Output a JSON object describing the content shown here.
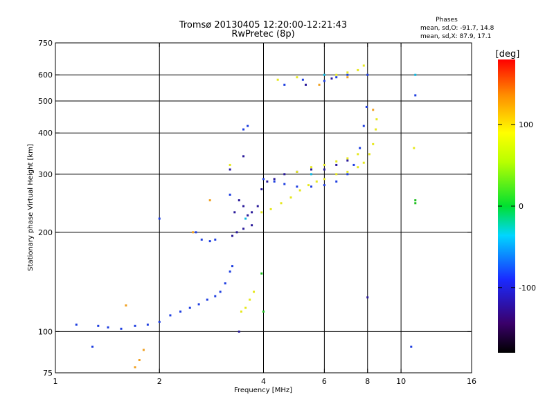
{
  "title": {
    "line1": "Tromsø 20130405 12:20:00-12:21:43",
    "line2": "RwPretec (8p)"
  },
  "phases": {
    "header": "Phases",
    "o_mode": "mean, sd,O: -91.7, 14.8",
    "x_mode": "mean, sd,X: 87.9, 17.1"
  },
  "colors": {
    "o_mode_main": "#1f3fe0",
    "o_mode_dark": "#2a1a9a",
    "x_mode": "#e6e81e",
    "x_mode_orange": "#f0a020",
    "grid": "#000000"
  },
  "colorbar": {
    "unit": "[deg]",
    "min": -180,
    "max": 180,
    "ticks": [
      "100",
      "0",
      "-100"
    ],
    "tick_values": [
      100,
      0,
      -100
    ]
  },
  "chart_data": {
    "type": "scatter",
    "title": "Tromsø 20130405 12:20:00-12:21:43",
    "subtitle": "RwPretec (8p)",
    "xlabel": "Frequency [MHz]",
    "ylabel": "Stationary phase Virtual Height [km]",
    "x_scale": "log2",
    "y_scale": "log",
    "xlim": [
      1,
      16
    ],
    "ylim": [
      75,
      750
    ],
    "x_ticks": [
      {
        "v": 1,
        "label": "1"
      },
      {
        "v": 2,
        "label": "2"
      },
      {
        "v": 4,
        "label": "4"
      },
      {
        "v": 6,
        "label": "6"
      },
      {
        "v": 8,
        "label": "8"
      },
      {
        "v": 10,
        "label": "10"
      },
      {
        "v": 16,
        "label": "16"
      }
    ],
    "x_grid": [
      2,
      4,
      6,
      8,
      10
    ],
    "y_ticks": [
      {
        "v": 75,
        "label": "75"
      },
      {
        "v": 100,
        "label": "100"
      },
      {
        "v": 200,
        "label": "200"
      },
      {
        "v": 300,
        "label": "300"
      },
      {
        "v": 400,
        "label": "400"
      },
      {
        "v": 500,
        "label": "500"
      },
      {
        "v": 600,
        "label": "600"
      },
      {
        "v": 750,
        "label": "750"
      }
    ],
    "y_grid": [
      100,
      200,
      300,
      400,
      500,
      600
    ],
    "grid": true,
    "series": [
      {
        "mode": "o",
        "phase": -100,
        "points": [
          [
            1.33,
            104
          ],
          [
            1.42,
            103
          ],
          [
            1.55,
            102
          ],
          [
            1.7,
            104
          ],
          [
            1.85,
            105
          ],
          [
            2.0,
            107
          ],
          [
            2.15,
            112
          ],
          [
            2.3,
            115
          ],
          [
            2.45,
            118
          ],
          [
            2.6,
            121
          ],
          [
            2.75,
            125
          ],
          [
            2.9,
            128
          ],
          [
            3.0,
            132
          ],
          [
            3.1,
            140
          ],
          [
            3.2,
            152
          ],
          [
            3.25,
            158
          ],
          [
            2.55,
            200
          ],
          [
            2.65,
            190
          ],
          [
            2.8,
            188
          ],
          [
            2.9,
            190
          ],
          [
            4.0,
            290
          ],
          [
            4.3,
            285
          ],
          [
            4.6,
            280
          ],
          [
            5.0,
            275
          ],
          [
            5.5,
            275
          ],
          [
            6.0,
            278
          ],
          [
            6.5,
            285
          ],
          [
            7.0,
            300
          ],
          [
            7.3,
            320
          ],
          [
            7.6,
            360
          ],
          [
            7.8,
            420
          ],
          [
            7.95,
            480
          ],
          [
            8.0,
            600
          ],
          [
            4.6,
            560
          ],
          [
            5.2,
            580
          ],
          [
            6.0,
            575
          ],
          [
            6.5,
            590
          ],
          [
            7.0,
            600
          ],
          [
            3.5,
            410
          ],
          [
            3.6,
            420
          ],
          [
            1.15,
            105
          ],
          [
            1.28,
            90
          ],
          [
            2.0,
            220
          ],
          [
            3.2,
            260
          ],
          [
            11.0,
            520
          ],
          [
            10.7,
            90
          ]
        ]
      },
      {
        "mode": "o_dark",
        "phase": -120,
        "points": [
          [
            3.25,
            195
          ],
          [
            3.35,
            200
          ],
          [
            3.5,
            205
          ],
          [
            3.7,
            210
          ],
          [
            3.85,
            240
          ],
          [
            3.95,
            270
          ],
          [
            4.1,
            285
          ],
          [
            4.3,
            290
          ],
          [
            4.6,
            300
          ],
          [
            5.0,
            305
          ],
          [
            5.5,
            310
          ],
          [
            6.0,
            310
          ],
          [
            6.5,
            320
          ],
          [
            7.0,
            330
          ],
          [
            3.3,
            230
          ],
          [
            3.4,
            250
          ],
          [
            3.5,
            240
          ],
          [
            3.6,
            225
          ],
          [
            3.7,
            230
          ],
          [
            5.3,
            560
          ],
          [
            6.3,
            585
          ],
          [
            3.5,
            340
          ],
          [
            3.2,
            310
          ],
          [
            8.0,
            127
          ],
          [
            3.4,
            100
          ]
        ]
      },
      {
        "mode": "x",
        "phase": 90,
        "points": [
          [
            3.45,
            115
          ],
          [
            3.55,
            118
          ],
          [
            3.65,
            125
          ],
          [
            3.75,
            132
          ],
          [
            3.95,
            230
          ],
          [
            4.2,
            235
          ],
          [
            4.5,
            245
          ],
          [
            4.8,
            255
          ],
          [
            5.1,
            268
          ],
          [
            5.4,
            278
          ],
          [
            5.7,
            285
          ],
          [
            6.0,
            290
          ],
          [
            6.5,
            300
          ],
          [
            7.0,
            305
          ],
          [
            7.5,
            315
          ],
          [
            7.8,
            325
          ],
          [
            8.1,
            345
          ],
          [
            8.3,
            370
          ],
          [
            8.45,
            410
          ],
          [
            8.5,
            440
          ],
          [
            5.0,
            305
          ],
          [
            5.5,
            315
          ],
          [
            6.0,
            320
          ],
          [
            6.5,
            328
          ],
          [
            7.0,
            335
          ],
          [
            7.5,
            345
          ],
          [
            6.5,
            600
          ],
          [
            7.0,
            610
          ],
          [
            7.5,
            620
          ],
          [
            7.8,
            640
          ],
          [
            4.4,
            580
          ],
          [
            5.0,
            590
          ],
          [
            3.2,
            320
          ],
          [
            10.9,
            360
          ]
        ]
      },
      {
        "mode": "x_orange",
        "phase": 130,
        "points": [
          [
            1.75,
            82
          ],
          [
            1.8,
            88
          ],
          [
            1.6,
            120
          ],
          [
            2.5,
            200
          ],
          [
            2.8,
            250
          ],
          [
            1.7,
            78
          ],
          [
            5.8,
            560
          ],
          [
            8.3,
            470
          ],
          [
            7.0,
            590
          ]
        ]
      },
      {
        "mode": "x_green",
        "phase": 20,
        "points": [
          [
            11.0,
            245
          ],
          [
            11.0,
            250
          ],
          [
            3.95,
            150
          ],
          [
            4.0,
            115
          ]
        ]
      },
      {
        "mode": "x_cyan",
        "phase": -40,
        "points": [
          [
            3.55,
            220
          ],
          [
            5.5,
            300
          ],
          [
            6.0,
            600
          ],
          [
            11.0,
            600
          ]
        ]
      }
    ]
  }
}
